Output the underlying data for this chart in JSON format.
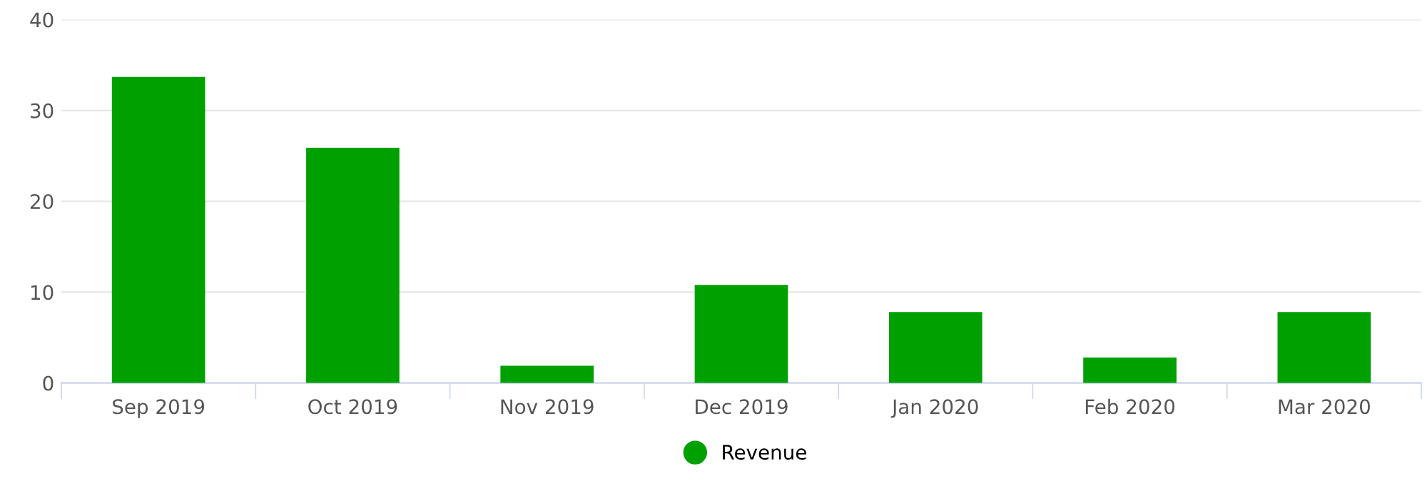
{
  "chart_data": {
    "type": "bar",
    "categories": [
      "Sep 2019",
      "Oct 2019",
      "Nov 2019",
      "Dec 2019",
      "Jan 2020",
      "Feb 2020",
      "Mar 2020"
    ],
    "series": [
      {
        "name": "Revenue",
        "color": "#00a000",
        "values": [
          33.7,
          25.9,
          1.9,
          10.8,
          7.8,
          2.8,
          7.8
        ]
      }
    ],
    "ylim": [
      0,
      40
    ],
    "yticks": [
      0,
      10,
      20,
      30,
      40
    ],
    "grid": "y",
    "legend": "bottom"
  }
}
